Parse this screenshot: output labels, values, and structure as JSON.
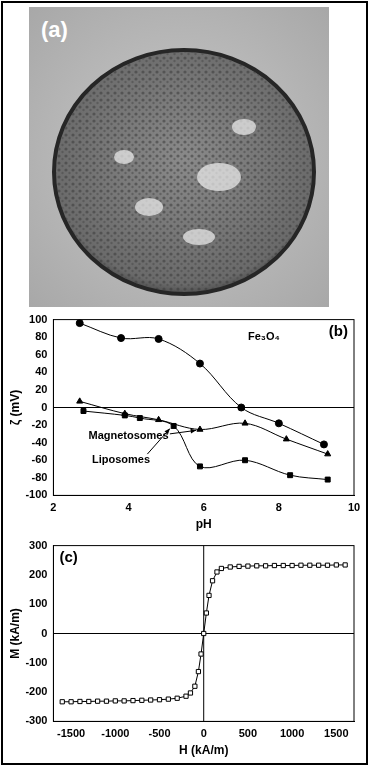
{
  "image": {
    "label": "(a)"
  },
  "chart_data": [
    {
      "type": "line",
      "title": "(b)",
      "x_label": "pH",
      "y_label": "ζ (mV)",
      "xlim": [
        2,
        10
      ],
      "xticks": [
        2,
        4,
        6,
        8,
        10
      ],
      "ylim": [
        -100,
        100
      ],
      "yticks": [
        -100,
        -80,
        -60,
        -40,
        -20,
        0,
        20,
        40,
        60,
        80,
        100
      ],
      "grid": false,
      "series": [
        {
          "name": "Fe₃O₄",
          "color": "#000000",
          "marker": "circle",
          "x": [
            2.7,
            3.8,
            4.8,
            5.9,
            7.0,
            8.0,
            9.2
          ],
          "values": [
            96,
            79,
            78,
            50,
            0,
            -18,
            -42
          ]
        },
        {
          "name": "Magnetosomes",
          "color": "#000000",
          "marker": "triangle",
          "x": [
            2.7,
            3.9,
            4.8,
            5.9,
            7.1,
            8.2,
            9.3
          ],
          "values": [
            7,
            -7,
            -14,
            -25,
            -18,
            -36,
            -53
          ]
        },
        {
          "name": "Liposomes",
          "color": "#000000",
          "marker": "square",
          "x": [
            2.8,
            3.9,
            4.3,
            5.2,
            5.9,
            7.1,
            8.3,
            9.3
          ],
          "values": [
            -4,
            -9,
            -12,
            -21,
            -67,
            -60,
            -77,
            -82
          ]
        }
      ]
    },
    {
      "type": "line",
      "title": "(c)",
      "x_label": "H (kA/m)",
      "y_label": "M (kA/m)",
      "xlim": [
        -1700,
        1700
      ],
      "xticks": [
        -1500,
        -1000,
        -500,
        0,
        500,
        1000,
        1500
      ],
      "ylim": [
        -300,
        300
      ],
      "yticks": [
        -300,
        -200,
        -100,
        0,
        100,
        200,
        300
      ],
      "grid": false,
      "series": [
        {
          "color": "#000000",
          "marker": "open_square",
          "x": [
            -1600,
            -1500,
            -1400,
            -1300,
            -1200,
            -1100,
            -1000,
            -900,
            -800,
            -700,
            -600,
            -500,
            -400,
            -300,
            -200,
            -150,
            -100,
            -60,
            -30,
            0,
            30,
            60,
            100,
            150,
            200,
            300,
            400,
            500,
            600,
            700,
            800,
            900,
            1000,
            1100,
            1200,
            1300,
            1400,
            1500,
            1600
          ],
          "values": [
            -233,
            -233,
            -232,
            -232,
            -231,
            -231,
            -230,
            -230,
            -229,
            -228,
            -227,
            -226,
            -224,
            -221,
            -214,
            -203,
            -180,
            -130,
            -70,
            0,
            70,
            130,
            180,
            210,
            222,
            227,
            229,
            230,
            231,
            231,
            232,
            232,
            232,
            233,
            233,
            233,
            233,
            234,
            234
          ]
        }
      ]
    }
  ]
}
